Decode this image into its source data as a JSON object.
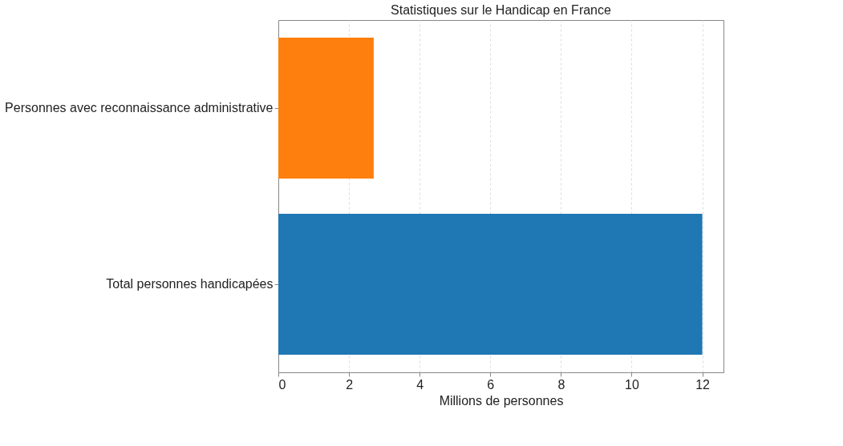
{
  "chart_data": {
    "type": "bar",
    "orientation": "horizontal",
    "title": "Statistiques sur le Handicap en France",
    "categories": [
      "Personnes avec reconnaissance administrative",
      "Total personnes handicapées"
    ],
    "values": [
      2.7,
      12
    ],
    "colors": [
      "#ff7f0e",
      "#1f77b4"
    ],
    "xlabel": "Millions de personnes",
    "xlim": [
      0,
      12.6
    ],
    "xticks": [
      0,
      2,
      4,
      6,
      8,
      10,
      12
    ],
    "grid": "x"
  }
}
